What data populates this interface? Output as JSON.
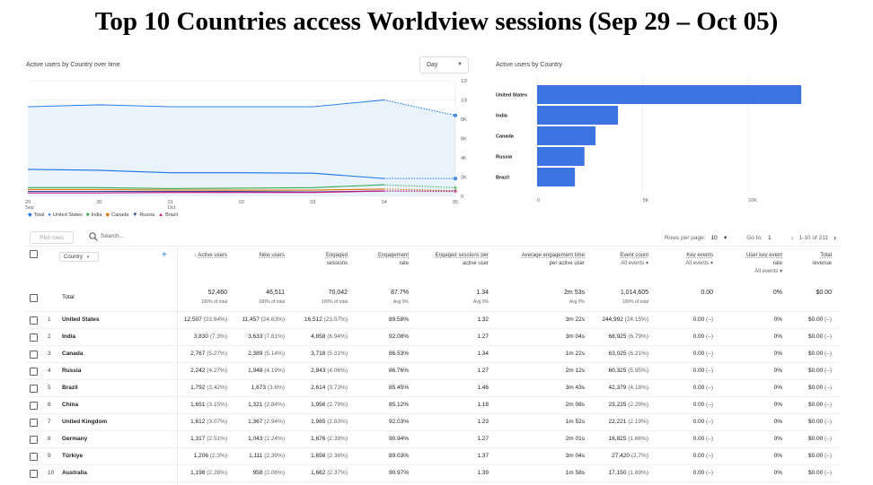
{
  "slide_title": "Top 10 Countries access Worldview sessions (Sep 29 – Oct 05)",
  "line_card": {
    "title": "Active users by Country over time",
    "granularity": "Day",
    "y_ticks": [
      "12K",
      "10K",
      "8K",
      "6K",
      "4K",
      "2K",
      "0"
    ],
    "x_ticks": [
      {
        "top": "29",
        "bottom": "Sep"
      },
      {
        "top": "30",
        "bottom": ""
      },
      {
        "top": "01",
        "bottom": "Oct"
      },
      {
        "top": "02",
        "bottom": ""
      },
      {
        "top": "03",
        "bottom": ""
      },
      {
        "top": "04",
        "bottom": ""
      },
      {
        "top": "05",
        "bottom": ""
      }
    ],
    "legend": [
      {
        "label": "Total",
        "color": "#1a73e8",
        "marker": "diamond"
      },
      {
        "label": "United States",
        "color": "#1a73e8",
        "marker": "circle"
      },
      {
        "label": "India",
        "color": "#34a853",
        "marker": "square"
      },
      {
        "label": "Canada",
        "color": "#e37400",
        "marker": "diamond"
      },
      {
        "label": "Russia",
        "color": "#202f8c",
        "marker": "triangle-down"
      },
      {
        "label": "Brazil",
        "color": "#d01884",
        "marker": "triangle"
      }
    ]
  },
  "bar_card": {
    "title": "Active users by Country",
    "categories": [
      "United States",
      "India",
      "Canada",
      "Russia",
      "Brazil"
    ],
    "x_ticks": [
      "0",
      "5K",
      "10K"
    ]
  },
  "chart_data": [
    {
      "type": "line",
      "title": "Active users by Country over time",
      "x": [
        "Sep 29",
        "Sep 30",
        "Oct 01",
        "Oct 02",
        "Oct 03",
        "Oct 04",
        "Oct 05"
      ],
      "ylim": [
        0,
        12000
      ],
      "grid": true,
      "legend_position": "bottom-left",
      "series": [
        {
          "name": "Total",
          "color": "#1a73e8",
          "values": [
            9300,
            9500,
            9300,
            9300,
            9300,
            10000,
            8400
          ]
        },
        {
          "name": "United States",
          "color": "#1a73e8",
          "values": [
            2800,
            2700,
            2450,
            2450,
            2400,
            1850,
            1850
          ]
        },
        {
          "name": "India",
          "color": "#34a853",
          "values": [
            900,
            900,
            800,
            850,
            900,
            1200,
            900
          ]
        },
        {
          "name": "Canada",
          "color": "#e37400",
          "values": [
            700,
            700,
            650,
            650,
            650,
            750,
            600
          ]
        },
        {
          "name": "Russia",
          "color": "#202f8c",
          "values": [
            500,
            500,
            500,
            500,
            450,
            550,
            550
          ]
        },
        {
          "name": "Brazil",
          "color": "#d01884",
          "values": [
            350,
            350,
            400,
            400,
            400,
            550,
            500
          ]
        }
      ]
    },
    {
      "type": "bar",
      "orientation": "horizontal",
      "title": "Active users by Country",
      "categories": [
        "United States",
        "India",
        "Canada",
        "Russia",
        "Brazil"
      ],
      "values": [
        12507,
        3830,
        2767,
        2242,
        1792
      ],
      "xlim": [
        0,
        12500
      ],
      "color": "#3b73e0"
    }
  ],
  "toolbar": {
    "plot_rows": "Plot rows",
    "search_placeholder": "Search...",
    "rows_per_page_label": "Rows per page:",
    "rows_per_page": "10",
    "goto_label": "Go to:",
    "goto_value": "1",
    "range": "1-10 of 211"
  },
  "table": {
    "dimension": "Country",
    "headers": [
      {
        "l1": "Active users",
        "l2": ""
      },
      {
        "l1": "New users",
        "l2": ""
      },
      {
        "l1": "Engaged",
        "l2": "sessions"
      },
      {
        "l1": "Engagement",
        "l2": "rate"
      },
      {
        "l1": "Engaged sessions per",
        "l2": "active user"
      },
      {
        "l1": "Average engagement time",
        "l2": "per active user"
      },
      {
        "l1": "Event count",
        "l2": "All events ▾"
      },
      {
        "l1": "Key events",
        "l2": "All events ▾"
      },
      {
        "l1": "User key event",
        "l2": "rate"
      },
      {
        "l1": "Total",
        "l2": "revenue"
      }
    ],
    "extra_header_note": "All events ▾",
    "total": {
      "label": "Total",
      "values": [
        {
          "v": "52,460",
          "s": "100% of total"
        },
        {
          "v": "46,511",
          "s": "100% of total"
        },
        {
          "v": "70,042",
          "s": "100% of total"
        },
        {
          "v": "87.7%",
          "s": "Avg 0%"
        },
        {
          "v": "1.34",
          "s": "Avg 0%"
        },
        {
          "v": "2m 53s",
          "s": "Avg 0%"
        },
        {
          "v": "1,014,605",
          "s": "100% of total"
        },
        {
          "v": "0.00",
          "s": ""
        },
        {
          "v": "0%",
          "s": ""
        },
        {
          "v": "$0.00",
          "s": ""
        }
      ]
    },
    "rows": [
      {
        "rank": "1",
        "country": "United States",
        "active": "12,507",
        "active_pct": "(23.84%)",
        "new": "11,457",
        "new_pct": "(24.63%)",
        "eng": "16,512",
        "eng_pct": "(23.57%)",
        "rate": "89.58%",
        "per": "1.32",
        "time": "3m 22s",
        "events": "244,992",
        "events_pct": "(24.15%)",
        "key": "0.00",
        "key_pct": "(–)",
        "ukr": "0%",
        "rev": "$0.00",
        "rev_pct": "(–)"
      },
      {
        "rank": "2",
        "country": "India",
        "active": "3,830",
        "active_pct": "(7.3%)",
        "new": "3,633",
        "new_pct": "(7.81%)",
        "eng": "4,858",
        "eng_pct": "(6.94%)",
        "rate": "92.08%",
        "per": "1.27",
        "time": "3m 04s",
        "events": "68,925",
        "events_pct": "(6.79%)",
        "key": "0.00",
        "key_pct": "(–)",
        "ukr": "0%",
        "rev": "$0.00",
        "rev_pct": "(–)"
      },
      {
        "rank": "3",
        "country": "Canada",
        "active": "2,767",
        "active_pct": "(5.27%)",
        "new": "2,389",
        "new_pct": "(5.14%)",
        "eng": "3,718",
        "eng_pct": "(5.31%)",
        "rate": "86.53%",
        "per": "1.34",
        "time": "1m 22s",
        "events": "63,025",
        "events_pct": "(6.21%)",
        "key": "0.00",
        "key_pct": "(–)",
        "ukr": "0%",
        "rev": "$0.00",
        "rev_pct": "(–)"
      },
      {
        "rank": "4",
        "country": "Russia",
        "active": "2,242",
        "active_pct": "(4.27%)",
        "new": "1,948",
        "new_pct": "(4.19%)",
        "eng": "2,843",
        "eng_pct": "(4.06%)",
        "rate": "86.76%",
        "per": "1.27",
        "time": "2m 12s",
        "events": "60,325",
        "events_pct": "(5.95%)",
        "key": "0.00",
        "key_pct": "(–)",
        "ukr": "0%",
        "rev": "$0.00",
        "rev_pct": "(–)"
      },
      {
        "rank": "5",
        "country": "Brazil",
        "active": "1,792",
        "active_pct": "(3.42%)",
        "new": "1,673",
        "new_pct": "(3.6%)",
        "eng": "2,614",
        "eng_pct": "(3.73%)",
        "rate": "85.45%",
        "per": "1.46",
        "time": "3m 43s",
        "events": "42,379",
        "events_pct": "(4.18%)",
        "key": "0.00",
        "key_pct": "(–)",
        "ukr": "0%",
        "rev": "$0.00",
        "rev_pct": "(–)"
      },
      {
        "rank": "6",
        "country": "China",
        "active": "1,651",
        "active_pct": "(3.15%)",
        "new": "1,321",
        "new_pct": "(2.84%)",
        "eng": "1,956",
        "eng_pct": "(2.79%)",
        "rate": "85.12%",
        "per": "1.18",
        "time": "2m 08s",
        "events": "23,225",
        "events_pct": "(2.29%)",
        "key": "0.00",
        "key_pct": "(–)",
        "ukr": "0%",
        "rev": "$0.00",
        "rev_pct": "(–)"
      },
      {
        "rank": "7",
        "country": "United Kingdom",
        "active": "1,612",
        "active_pct": "(3.07%)",
        "new": "1,367",
        "new_pct": "(2.94%)",
        "eng": "1,985",
        "eng_pct": "(2.83%)",
        "rate": "92.03%",
        "per": "1.23",
        "time": "1m 52s",
        "events": "22,221",
        "events_pct": "(2.19%)",
        "key": "0.00",
        "key_pct": "(–)",
        "ukr": "0%",
        "rev": "$0.00",
        "rev_pct": "(–)"
      },
      {
        "rank": "8",
        "country": "Germany",
        "active": "1,317",
        "active_pct": "(2.51%)",
        "new": "1,043",
        "new_pct": "(2.24%)",
        "eng": "1,676",
        "eng_pct": "(2.39%)",
        "rate": "90.94%",
        "per": "1.27",
        "time": "2m 01s",
        "events": "16,825",
        "events_pct": "(1.66%)",
        "key": "0.00",
        "key_pct": "(–)",
        "ukr": "0%",
        "rev": "$0.00",
        "rev_pct": "(–)"
      },
      {
        "rank": "9",
        "country": "Türkiye",
        "active": "1,206",
        "active_pct": "(2.3%)",
        "new": "1,111",
        "new_pct": "(2.39%)",
        "eng": "1,656",
        "eng_pct": "(2.36%)",
        "rate": "89.03%",
        "per": "1.37",
        "time": "3m 04s",
        "events": "27,420",
        "events_pct": "(2.7%)",
        "key": "0.00",
        "key_pct": "(–)",
        "ukr": "0%",
        "rev": "$0.00",
        "rev_pct": "(–)"
      },
      {
        "rank": "10",
        "country": "Australia",
        "active": "1,198",
        "active_pct": "(2.28%)",
        "new": "958",
        "new_pct": "(2.06%)",
        "eng": "1,662",
        "eng_pct": "(2.37%)",
        "rate": "90.97%",
        "per": "1.39",
        "time": "1m 58s",
        "events": "17,150",
        "events_pct": "(1.69%)",
        "key": "0.00",
        "key_pct": "(–)",
        "ukr": "0%",
        "rev": "$0.00",
        "rev_pct": "(–)"
      }
    ]
  }
}
